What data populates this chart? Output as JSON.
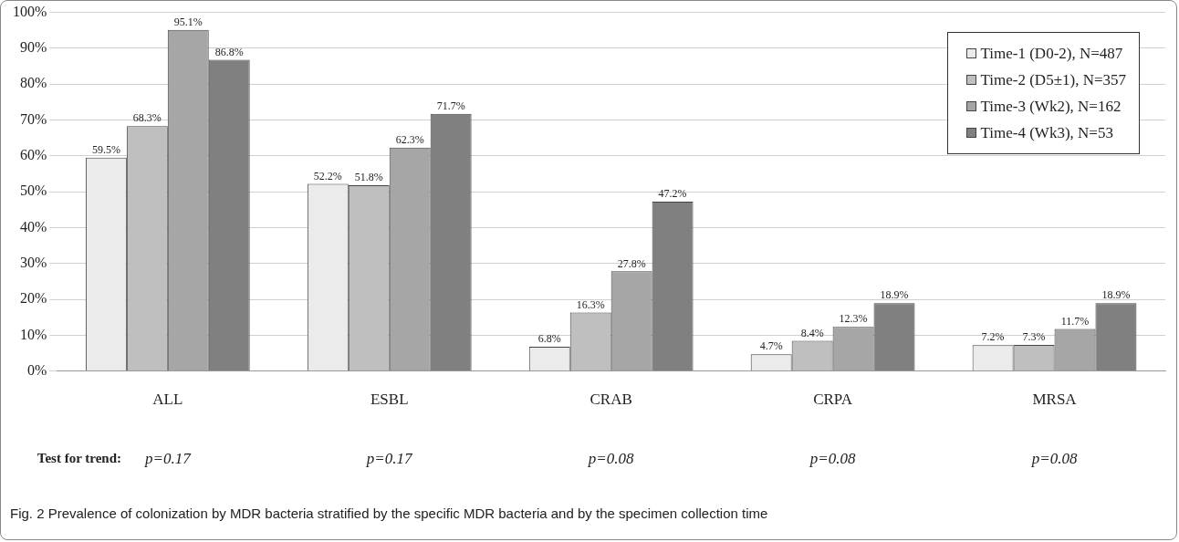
{
  "chart_data": {
    "type": "bar",
    "categories": [
      "ALL",
      "ESBL",
      "CRAB",
      "CRPA",
      "MRSA"
    ],
    "series": [
      {
        "name": "Time-1 (D0-2), N=487",
        "color": "#ebebeb",
        "values": [
          59.5,
          52.2,
          6.8,
          4.7,
          7.2
        ],
        "value_labels": [
          "59.5%",
          "52.2%",
          "6.8%",
          "4.7%",
          "7.2%"
        ]
      },
      {
        "name": "Time-2 (D5±1), N=357",
        "color": "#bfbfbf",
        "values": [
          68.3,
          51.8,
          16.3,
          8.4,
          7.3
        ],
        "value_labels": [
          "68.3%",
          "51.8%",
          "16.3%",
          "8.4%",
          "7.3%"
        ]
      },
      {
        "name": "Time-3 (Wk2), N=162",
        "color": "#a6a6a6",
        "values": [
          95.1,
          62.3,
          27.8,
          12.3,
          11.7
        ],
        "value_labels": [
          "95.1%",
          "62.3%",
          "27.8%",
          "12.3%",
          "11.7%"
        ]
      },
      {
        "name": "Time-4 (Wk3), N=53",
        "color": "#808080",
        "values": [
          86.8,
          71.7,
          47.2,
          18.9,
          18.9
        ],
        "value_labels": [
          "86.8%",
          "71.7%",
          "47.2%",
          "18.9%",
          "18.9%"
        ]
      }
    ],
    "ylim": [
      0,
      100
    ],
    "yticks": [
      {
        "value": 0,
        "label": "0%"
      },
      {
        "value": 10,
        "label": "10%"
      },
      {
        "value": 20,
        "label": "20%"
      },
      {
        "value": 30,
        "label": "30%"
      },
      {
        "value": 40,
        "label": "40%"
      },
      {
        "value": 50,
        "label": "50%"
      },
      {
        "value": 60,
        "label": "60%"
      },
      {
        "value": 70,
        "label": "70%"
      },
      {
        "value": 80,
        "label": "80%"
      },
      {
        "value": 90,
        "label": "90%"
      },
      {
        "value": 100,
        "label": "100%"
      }
    ],
    "grid": "y",
    "legend": "top right",
    "annotations": [
      "Test for trend:",
      "p=0.17",
      "p=0.17",
      "p=0.08",
      "p=0.08",
      "p=0.08",
      "Fig. 2 Prevalence of colonization by MDR bacteria stratified by the specific MDR bacteria and by the specimen collection time"
    ]
  }
}
